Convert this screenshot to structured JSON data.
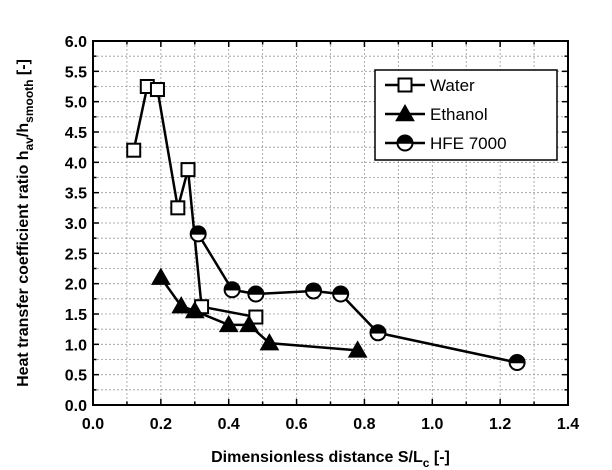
{
  "chart_data": {
    "type": "line",
    "xlabel": "Dimensionless distance S/L",
    "xlabel_sub": "c",
    "xlabel_unit": " [-]",
    "ylabel": "Heat transfer coefficient ratio h",
    "ylabel_sub1": "av",
    "ylabel_mid": "/h",
    "ylabel_sub2": "smooth",
    "ylabel_unit": " [-]",
    "xlim": [
      0.0,
      1.4
    ],
    "ylim": [
      0.0,
      6.0
    ],
    "x_ticks": [
      "0.0",
      "0.2",
      "0.4",
      "0.6",
      "0.8",
      "1.0",
      "1.2",
      "1.4"
    ],
    "y_ticks": [
      "0.0",
      "0.5",
      "1.0",
      "1.5",
      "2.0",
      "2.5",
      "3.0",
      "3.5",
      "4.0",
      "4.5",
      "5.0",
      "5.5",
      "6.0"
    ],
    "grid": true,
    "legend_position": "top-right",
    "series": [
      {
        "name": "Water",
        "marker": "open-square",
        "x": [
          0.12,
          0.16,
          0.19,
          0.25,
          0.28,
          0.32,
          0.48
        ],
        "y": [
          4.2,
          5.25,
          5.2,
          3.25,
          3.88,
          1.62,
          1.45
        ]
      },
      {
        "name": "Ethanol",
        "marker": "filled-triangle",
        "x": [
          0.2,
          0.26,
          0.3,
          0.4,
          0.46,
          0.52,
          0.78
        ],
        "y": [
          2.1,
          1.63,
          1.55,
          1.32,
          1.32,
          1.02,
          0.9
        ]
      },
      {
        "name": "HFE 7000",
        "marker": "half-filled-circle",
        "x": [
          0.31,
          0.41,
          0.48,
          0.65,
          0.73,
          0.84,
          1.25
        ],
        "y": [
          2.82,
          1.9,
          1.83,
          1.88,
          1.83,
          1.19,
          0.7
        ]
      }
    ]
  }
}
